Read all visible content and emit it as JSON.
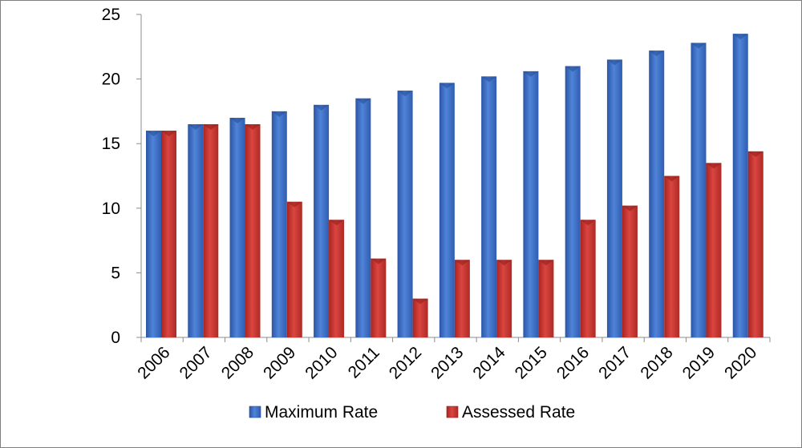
{
  "chart_data": {
    "type": "bar",
    "title": "",
    "xlabel": "",
    "ylabel": "",
    "ylim": [
      0,
      25
    ],
    "yticks": [
      0,
      5,
      10,
      15,
      20,
      25
    ],
    "grid": false,
    "legend_position": "bottom",
    "categories": [
      "2006",
      "2007",
      "2008",
      "2009",
      "2010",
      "2011",
      "2012",
      "2013",
      "2014",
      "2015",
      "2016",
      "2017",
      "2018",
      "2019",
      "2020"
    ],
    "series": [
      {
        "name": "Maximum Rate",
        "color": "#3f6fc6",
        "values": [
          16.0,
          16.5,
          17.0,
          17.5,
          18.0,
          18.5,
          19.1,
          19.7,
          20.2,
          20.6,
          21.0,
          21.5,
          22.2,
          22.8,
          23.5
        ]
      },
      {
        "name": "Assessed Rate",
        "color": "#c9302c",
        "values": [
          16.0,
          16.5,
          16.5,
          10.5,
          9.1,
          6.1,
          3.0,
          6.0,
          6.0,
          6.0,
          9.1,
          10.2,
          12.5,
          13.5,
          14.4
        ]
      }
    ]
  }
}
